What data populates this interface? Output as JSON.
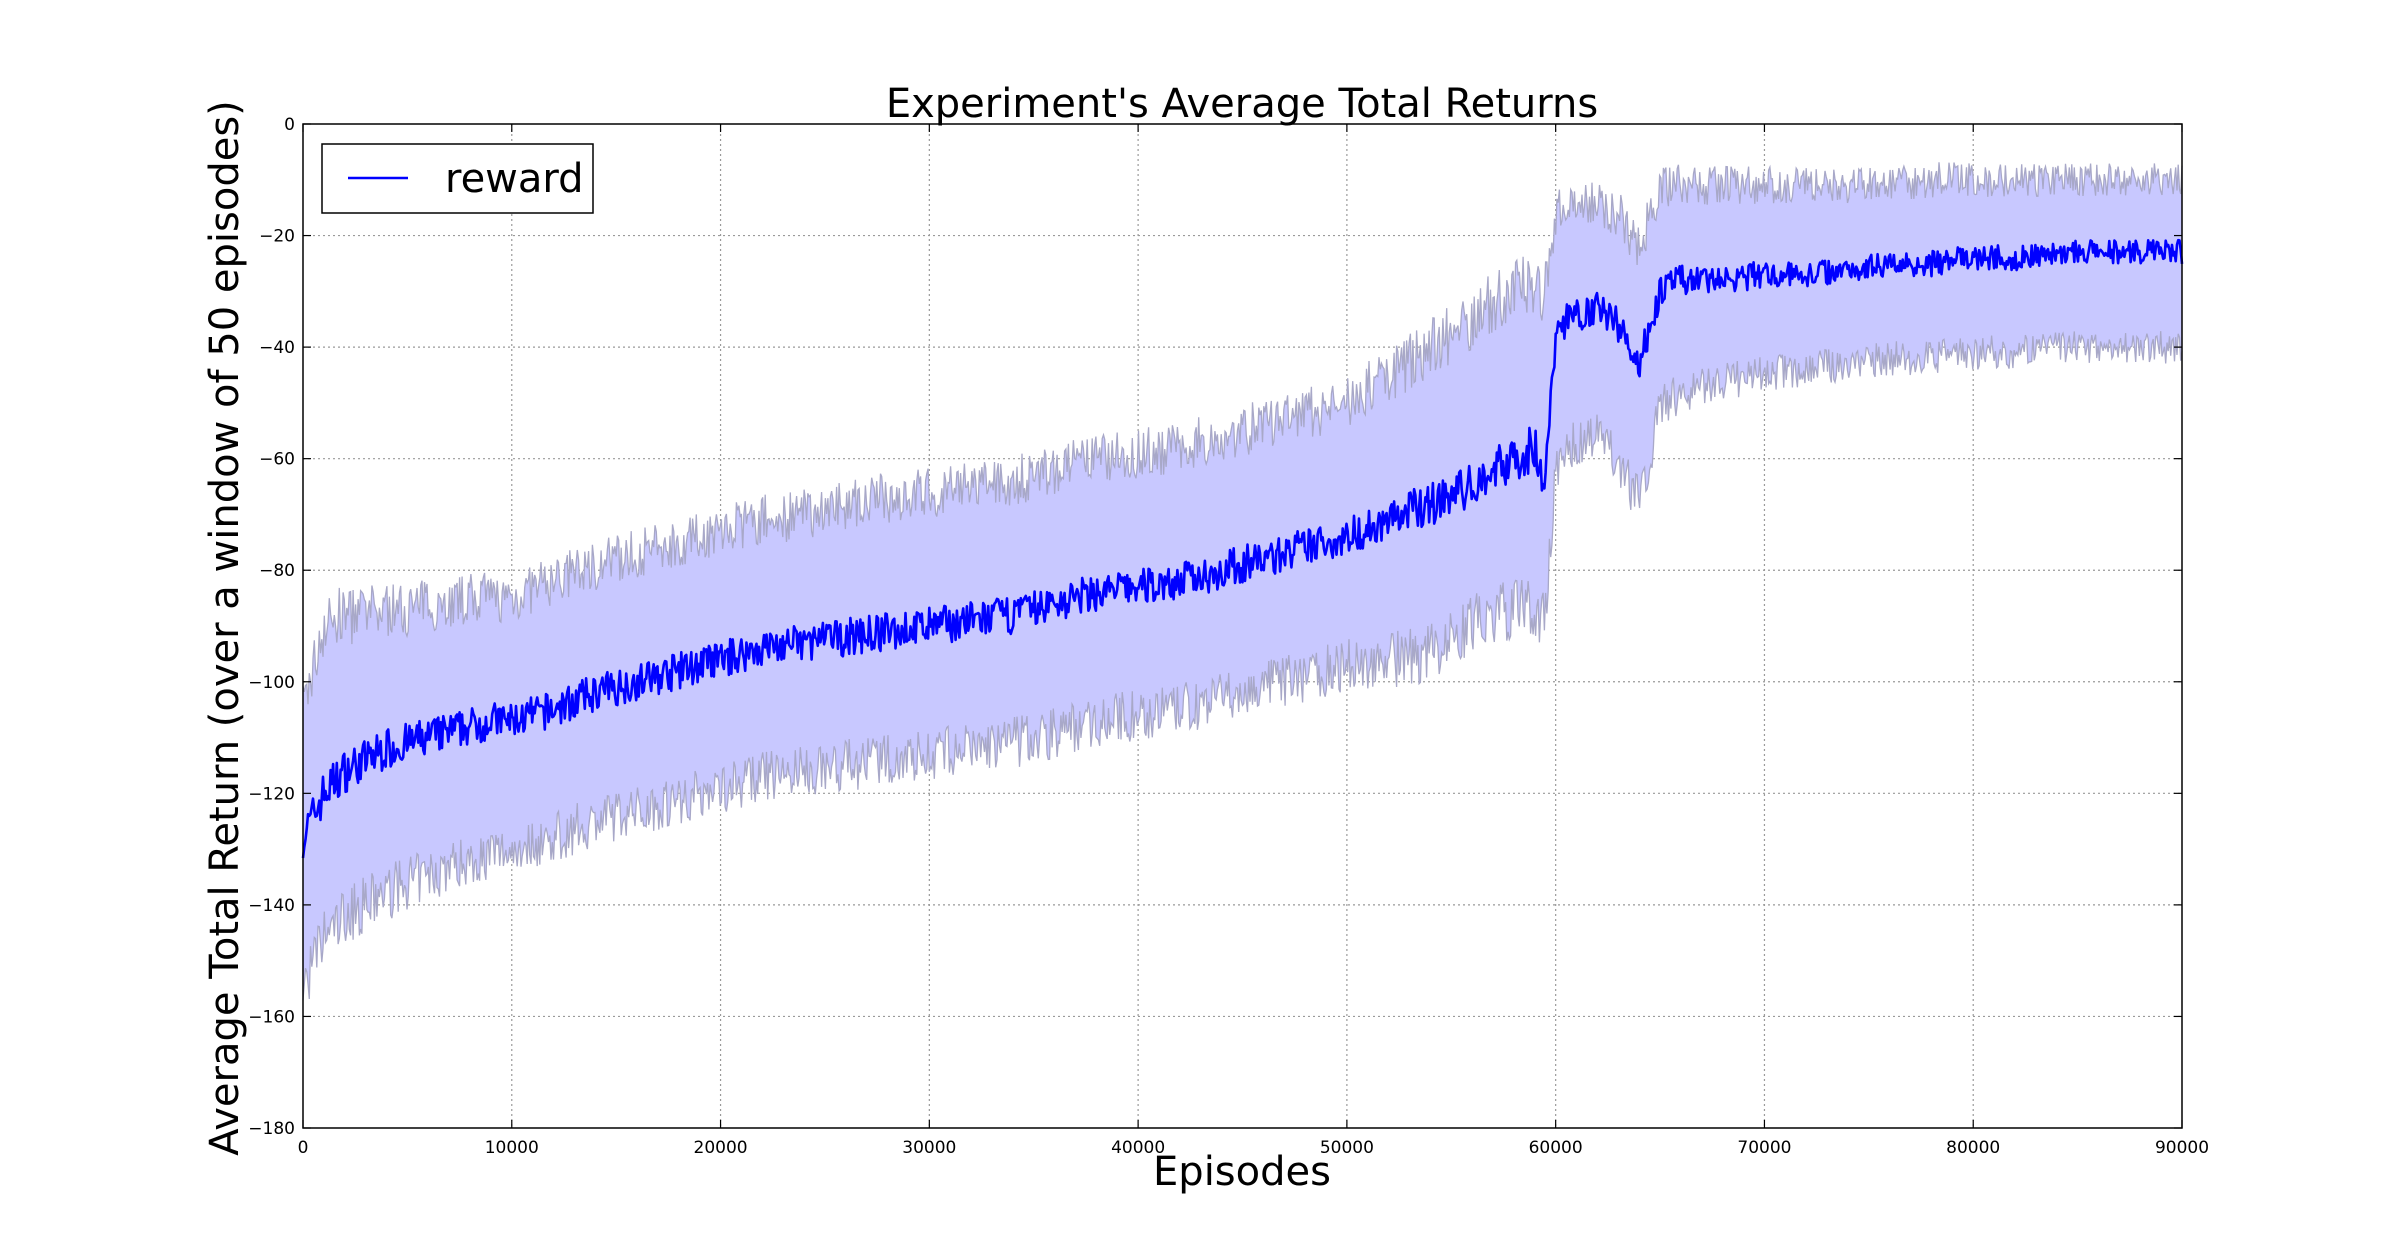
{
  "chart_data": {
    "type": "line",
    "title": "Experiment's Average Total Returns",
    "xlabel": "Episodes",
    "ylabel": "Average Total Return (over a window of 50 episodes)",
    "xlim": [
      0,
      90000
    ],
    "ylim": [
      -180,
      0
    ],
    "x_ticks": [
      "0",
      "10000",
      "20000",
      "30000",
      "40000",
      "50000",
      "60000",
      "70000",
      "80000",
      "90000"
    ],
    "y_ticks": [
      "0",
      "−20",
      "−40",
      "−60",
      "−80",
      "−100",
      "−120",
      "−140",
      "−160",
      "−180"
    ],
    "grid": true,
    "legend": {
      "placement": "top-left",
      "entries": [
        "reward"
      ]
    },
    "colors": {
      "line": "#0000ff",
      "band_fill": "#c8c8ff",
      "band_edge": "#a8a8c8"
    },
    "series": [
      {
        "name": "reward",
        "x": [
          0,
          1000,
          2000,
          3000,
          4000,
          5000,
          6000,
          7000,
          8000,
          9000,
          10000,
          12000,
          14000,
          16000,
          18000,
          20000,
          22000,
          24000,
          26000,
          28000,
          30000,
          32000,
          34000,
          36000,
          38000,
          40000,
          42000,
          44000,
          46000,
          48000,
          50000,
          52000,
          54000,
          56000,
          57000,
          58000,
          59000,
          59500,
          60000,
          61000,
          62000,
          63000,
          64000,
          65000,
          66000,
          68000,
          70000,
          72000,
          74000,
          76000,
          78000,
          80000,
          82000,
          84000,
          86000,
          88000,
          90000
        ],
        "values": [
          -128,
          -120,
          -116,
          -114,
          -112,
          -111,
          -110,
          -109,
          -108,
          -107,
          -107,
          -105,
          -102,
          -100,
          -98,
          -96,
          -94,
          -93,
          -92,
          -91,
          -90,
          -89,
          -88,
          -86,
          -84,
          -83,
          -82,
          -80,
          -78,
          -76,
          -74,
          -71,
          -68,
          -65,
          -62,
          -60,
          -58,
          -65,
          -37,
          -34,
          -33,
          -36,
          -43,
          -30,
          -28,
          -28,
          -27,
          -27,
          -26,
          -25,
          -25,
          -24,
          -24,
          -23,
          -23,
          -23,
          -23
        ],
        "band_upper": [
          -105,
          -90,
          -88,
          -88,
          -87,
          -87,
          -86,
          -86,
          -85,
          -85,
          -85,
          -82,
          -79,
          -77,
          -75,
          -73,
          -71,
          -70,
          -68,
          -67,
          -66,
          -65,
          -64,
          -62,
          -60,
          -59,
          -58,
          -56,
          -54,
          -52,
          -50,
          -45,
          -40,
          -35,
          -32,
          -30,
          -28,
          -30,
          -16,
          -14,
          -14,
          -16,
          -22,
          -11,
          -11,
          -11,
          -11,
          -11,
          -11,
          -11,
          -10,
          -10,
          -10,
          -10,
          -10,
          -10,
          -10
        ],
        "band_lower": [
          -155,
          -146,
          -142,
          -140,
          -138,
          -136,
          -135,
          -133,
          -132,
          -131,
          -130,
          -128,
          -125,
          -123,
          -121,
          -119,
          -117,
          -116,
          -115,
          -114,
          -113,
          -112,
          -111,
          -109,
          -107,
          -106,
          -105,
          -103,
          -101,
          -99,
          -97,
          -96,
          -95,
          -90,
          -88,
          -87,
          -87,
          -90,
          -62,
          -57,
          -56,
          -60,
          -68,
          -51,
          -48,
          -46,
          -45,
          -44,
          -43,
          -42,
          -42,
          -41,
          -41,
          -40,
          -40,
          -40,
          -40
        ]
      }
    ]
  }
}
